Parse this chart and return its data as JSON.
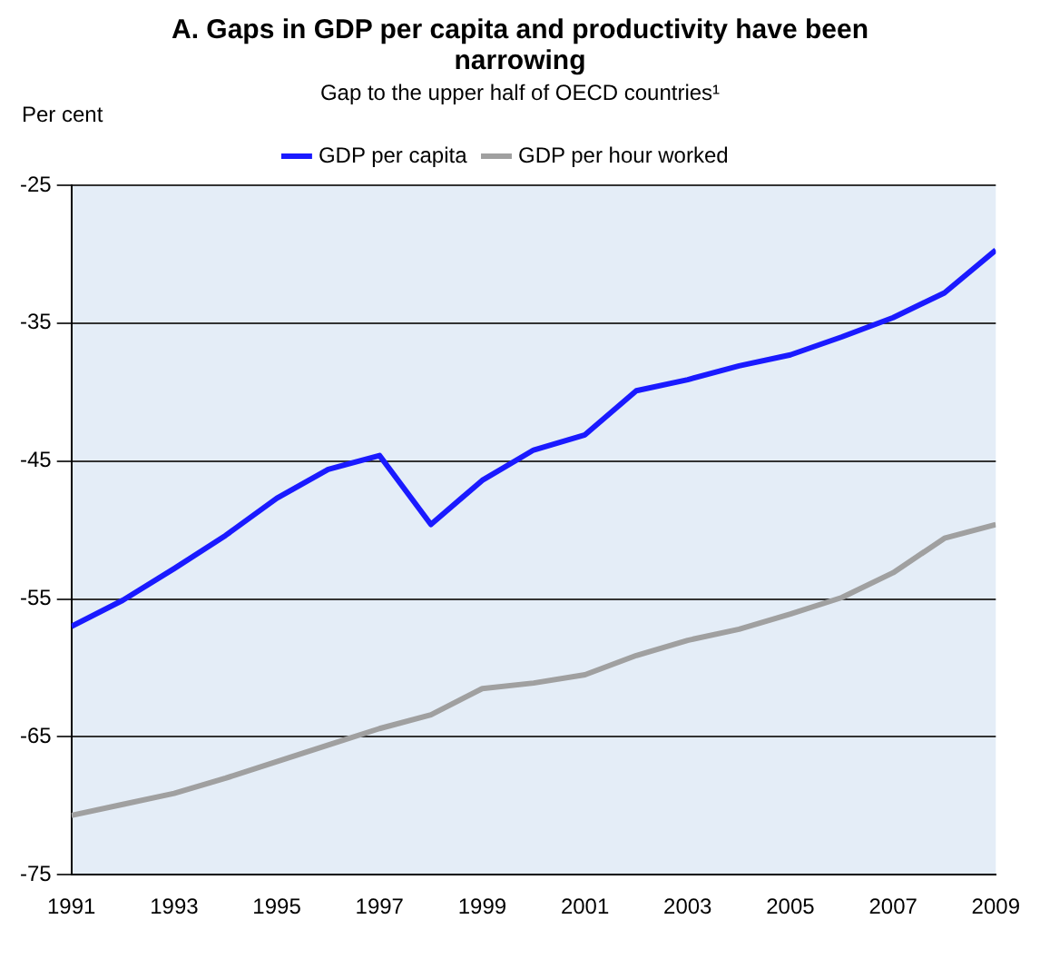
{
  "chart_data": {
    "type": "line",
    "title": "A. Gaps in GDP per capita and productivity have been narrowing",
    "subtitle": "Gap to the upper half of OECD countries¹",
    "ylabel": "Per cent",
    "x": [
      1991,
      1992,
      1993,
      1994,
      1995,
      1996,
      1997,
      1998,
      1999,
      2000,
      2001,
      2002,
      2003,
      2004,
      2005,
      2006,
      2007,
      2008,
      2009
    ],
    "series": [
      {
        "name": "GDP per capita",
        "color": "#1a1aff",
        "values": [
          -57.0,
          -55.1,
          -52.8,
          -50.4,
          -47.7,
          -45.6,
          -44.6,
          -49.6,
          -46.4,
          -44.2,
          -43.1,
          -39.9,
          -39.1,
          -38.1,
          -37.3,
          -36.0,
          -34.6,
          -32.8,
          -29.7
        ]
      },
      {
        "name": "GDP per hour worked",
        "color": "#a0a0a0",
        "values": [
          -70.7,
          -69.9,
          -69.1,
          -68.0,
          -66.8,
          -65.6,
          -64.4,
          -63.4,
          -61.5,
          -61.1,
          -60.5,
          -59.1,
          -58.0,
          -57.2,
          -56.1,
          -54.9,
          -53.1,
          -50.6,
          -49.6
        ]
      }
    ],
    "xlim": [
      1991,
      2009
    ],
    "xticks": [
      1991,
      1993,
      1995,
      1997,
      1999,
      2001,
      2003,
      2005,
      2007,
      2009
    ],
    "ylim": [
      -75,
      -25
    ],
    "yticks": [
      -75,
      -65,
      -55,
      -45,
      -35,
      -25
    ],
    "grid": "y",
    "legend": "top",
    "marker": "none",
    "line_style": "solid"
  }
}
